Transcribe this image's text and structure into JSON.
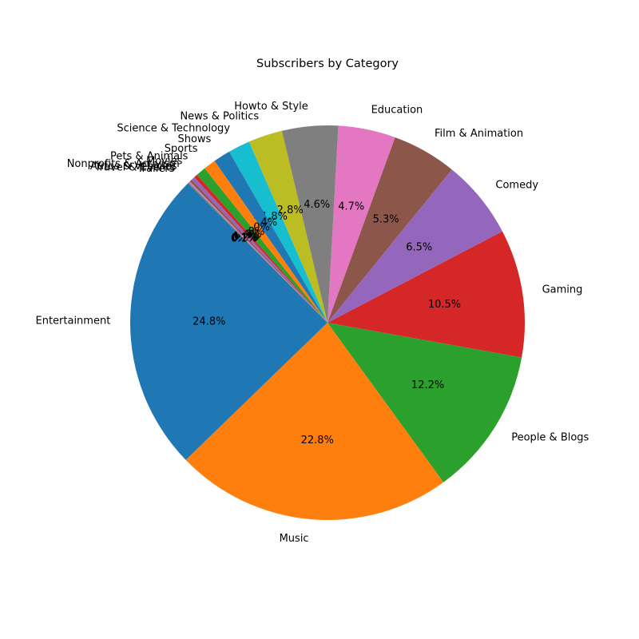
{
  "chart_data": {
    "type": "pie",
    "title": "Subscribers by Category",
    "start_angle_deg": 135,
    "direction": "counterclockwise",
    "slices": [
      {
        "label": "Entertainment",
        "value": 24.8,
        "pct_label": "24.8%",
        "color": "#1f77b4"
      },
      {
        "label": "Music",
        "value": 22.8,
        "pct_label": "22.8%",
        "color": "#ff7f0e"
      },
      {
        "label": "People & Blogs",
        "value": 12.2,
        "pct_label": "12.2%",
        "color": "#2ca02c"
      },
      {
        "label": "Gaming",
        "value": 10.5,
        "pct_label": "10.5%",
        "color": "#d62728"
      },
      {
        "label": "Comedy",
        "value": 6.5,
        "pct_label": "6.5%",
        "color": "#9467bd"
      },
      {
        "label": "Film & Animation",
        "value": 5.3,
        "pct_label": "5.3%",
        "color": "#8c564b"
      },
      {
        "label": "Education",
        "value": 4.7,
        "pct_label": "4.7%",
        "color": "#e377c2"
      },
      {
        "label": "Howto & Style",
        "value": 4.6,
        "pct_label": "4.6%",
        "color": "#7f7f7f"
      },
      {
        "label": "News & Politics",
        "value": 2.8,
        "pct_label": "2.8%",
        "color": "#bcbd22"
      },
      {
        "label": "Science & Technology",
        "value": 1.8,
        "pct_label": "1.8%",
        "color": "#17becf"
      },
      {
        "label": "Shows",
        "value": 1.4,
        "pct_label": "1.4%",
        "color": "#1f77b4"
      },
      {
        "label": "Sports",
        "value": 1.0,
        "pct_label": "1.0%",
        "color": "#ff7f0e"
      },
      {
        "label": "Pets & Animals",
        "value": 0.8,
        "pct_label": "0.8%",
        "color": "#2ca02c"
      },
      {
        "label": "Movies",
        "value": 0.3,
        "pct_label": "0.3%",
        "color": "#d62728"
      },
      {
        "label": "Nonprofits & Activism",
        "value": 0.3,
        "pct_label": "0.3%",
        "color": "#9467bd"
      },
      {
        "label": "Autos & Vehicles",
        "value": 0.2,
        "pct_label": "0.2%",
        "color": "#8c564b"
      },
      {
        "label": "Travel & Events",
        "value": 0.1,
        "pct_label": "0.1%",
        "color": "#e377c2"
      },
      {
        "label": "Trailers",
        "value": 0.1,
        "pct_label": "0.1%",
        "color": "#7f7f7f"
      }
    ]
  }
}
